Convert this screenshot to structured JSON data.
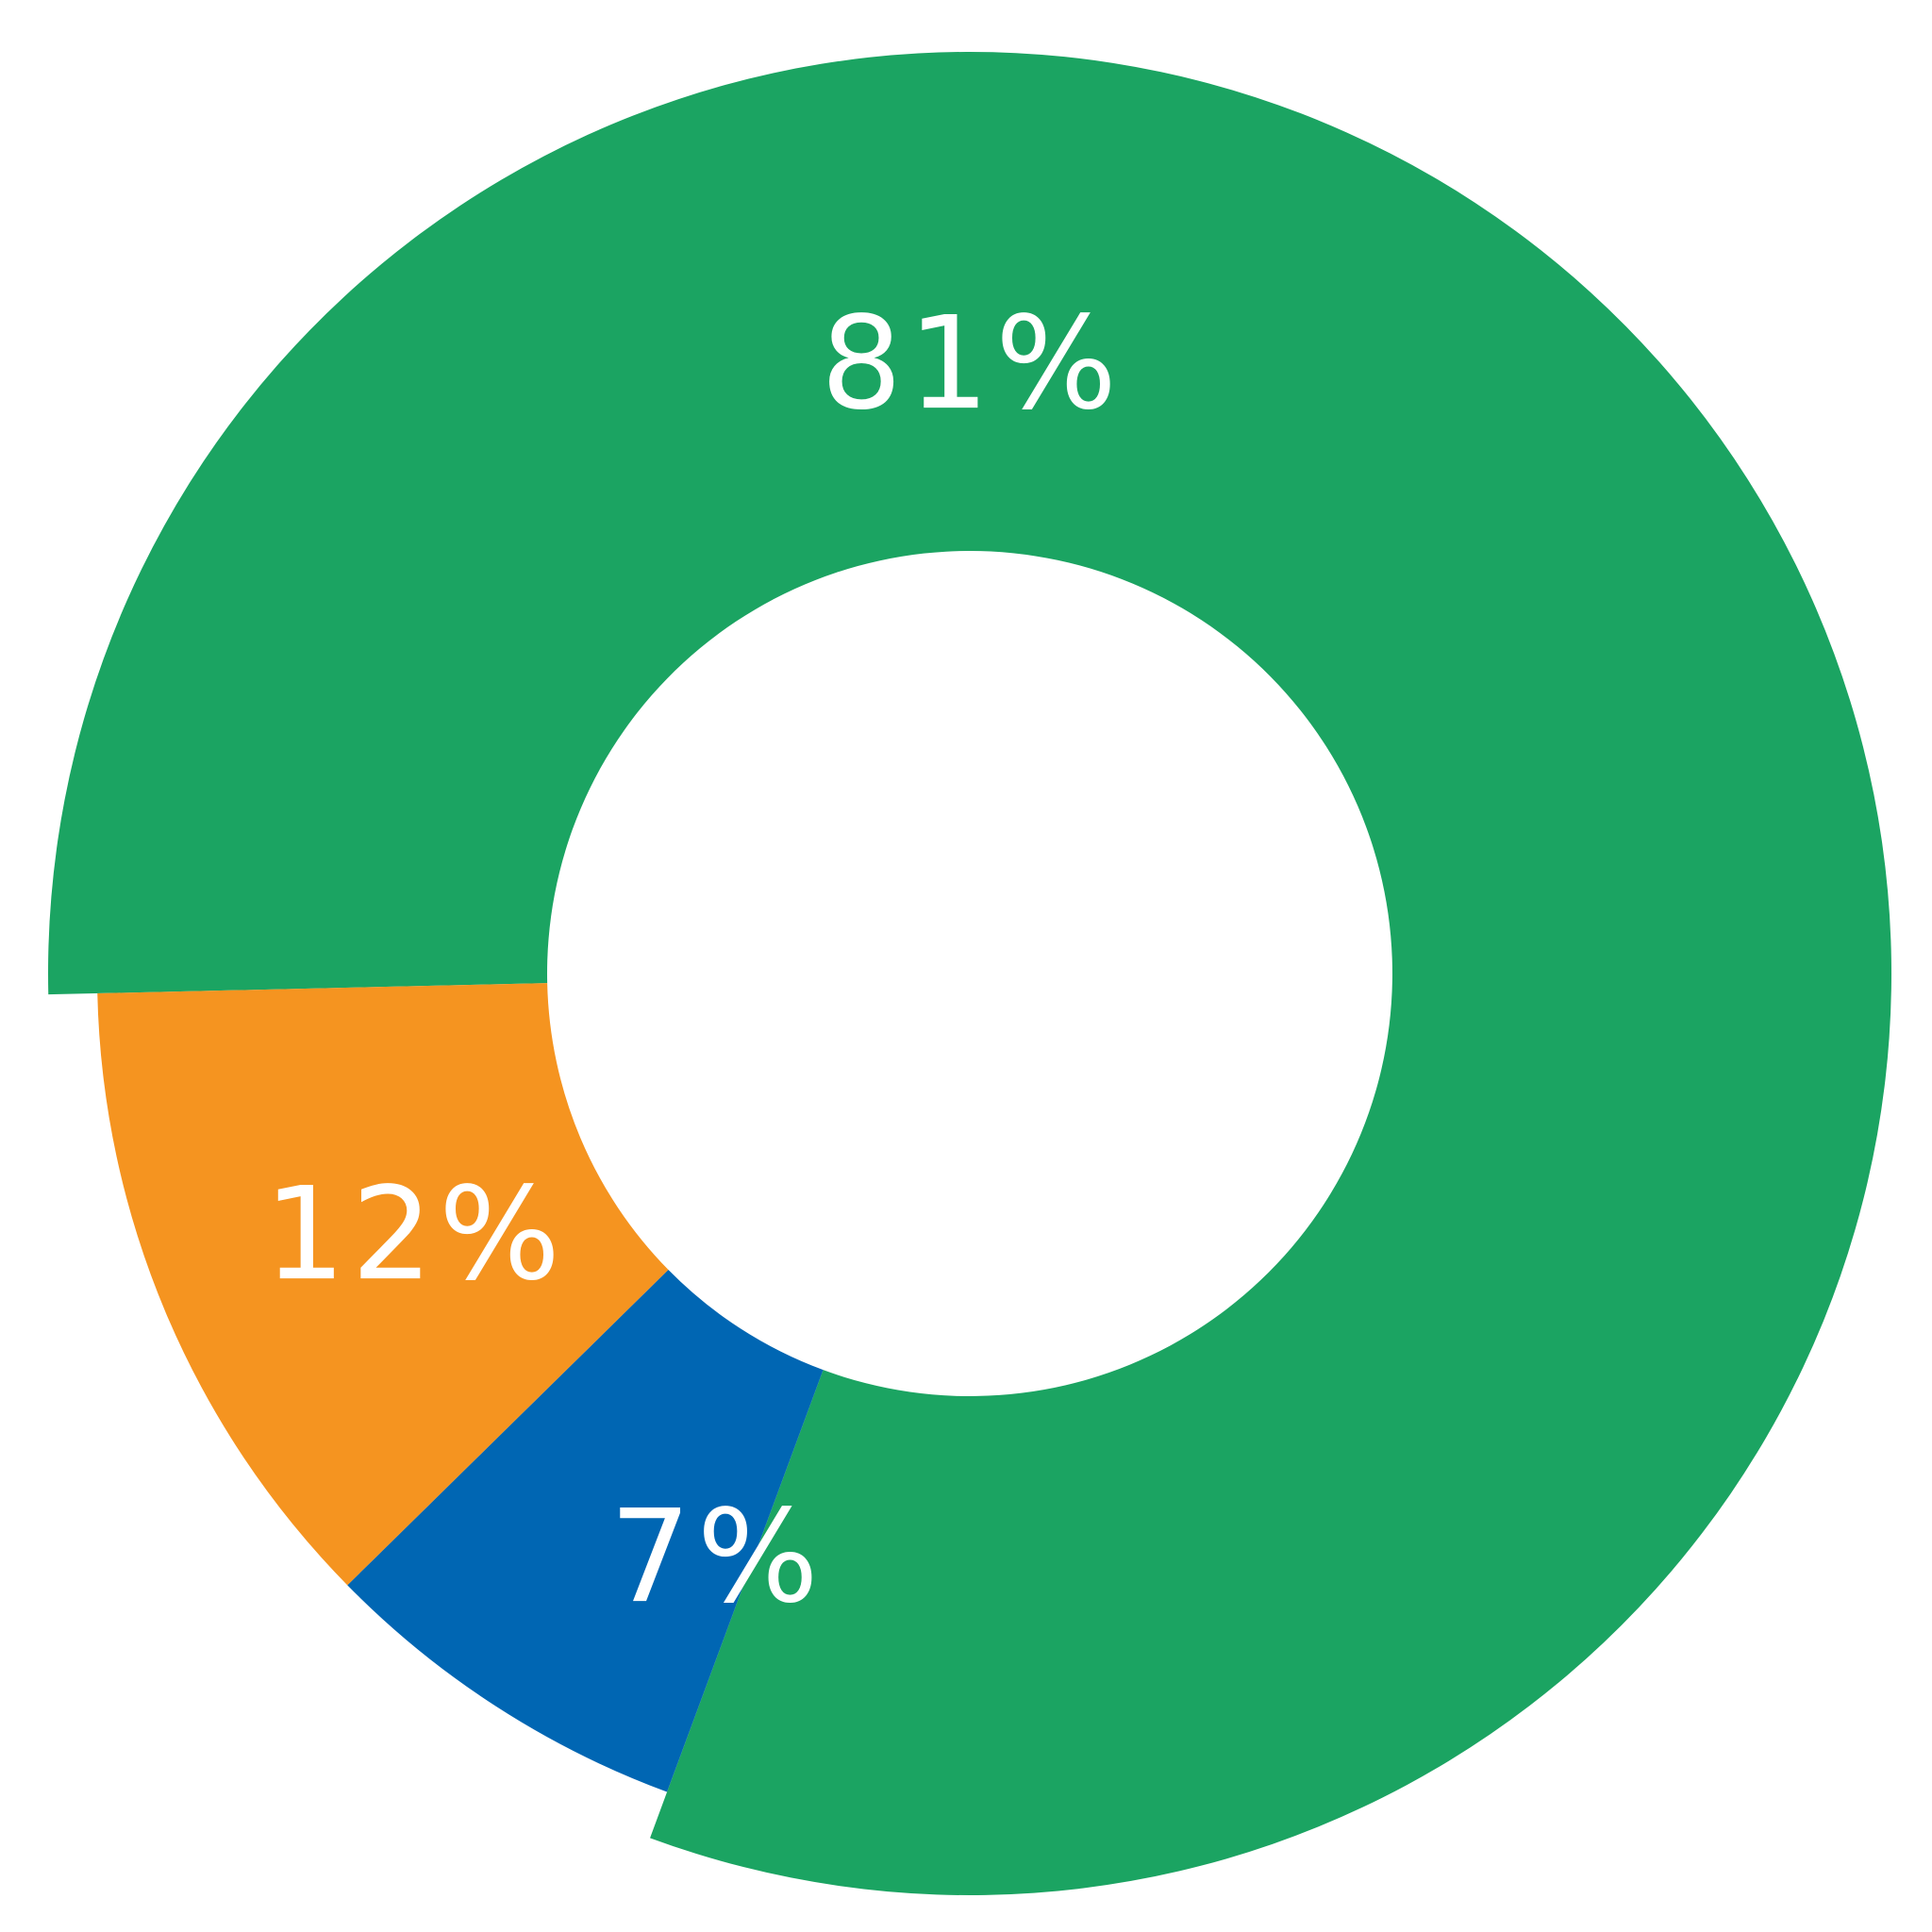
{
  "chart_data": {
    "type": "donut",
    "values": [
      81,
      7,
      12
    ],
    "value_labels": [
      "81%",
      "7%",
      "12%"
    ],
    "colors": [
      "#1ba462",
      "#0066b3",
      "#f59420"
    ]
  }
}
